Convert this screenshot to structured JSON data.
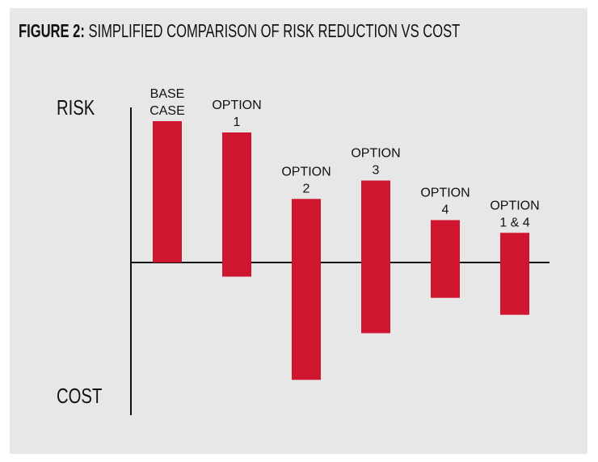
{
  "title": {
    "lead": "FIGURE 2:",
    "rest": "SIMPLIFIED COMPARISON OF RISK REDUCTION VS COST"
  },
  "axis": {
    "top_label": "RISK",
    "bottom_label": "COST"
  },
  "colors": {
    "bar": "#d0162f",
    "background": "#e7e7e7",
    "axis": "#111111"
  },
  "chart_data": {
    "type": "bar",
    "categories": [
      [
        "BASE",
        "CASE"
      ],
      [
        "OPTION",
        "1"
      ],
      [
        "OPTION",
        "2"
      ],
      [
        "OPTION",
        "3"
      ],
      [
        "OPTION",
        "4"
      ],
      [
        "OPTION",
        "1 & 4"
      ]
    ],
    "series": [
      {
        "values": [
          [
            0,
            10
          ],
          [
            -1,
            9.2
          ],
          [
            -8.3,
            4.5
          ],
          [
            -5,
            5.8
          ],
          [
            -2.5,
            3
          ],
          [
            -3.7,
            2.1
          ]
        ]
      }
    ],
    "ylim": [
      -11,
      11
    ],
    "grid": false
  }
}
